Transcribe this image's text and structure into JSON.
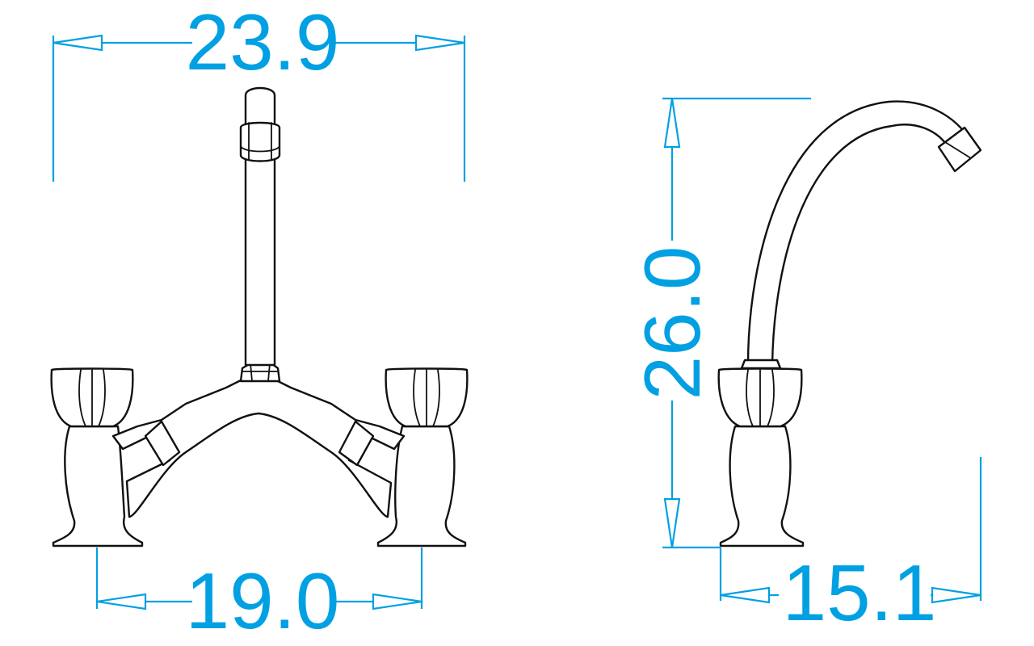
{
  "colors": {
    "dimension": "#00a0e3",
    "outline": "#111111",
    "background": "#ffffff"
  },
  "dimensions": {
    "front_overall_width": "23.9",
    "front_base_spacing": "19.0",
    "side_height": "26.0",
    "side_depth": "15.1"
  }
}
